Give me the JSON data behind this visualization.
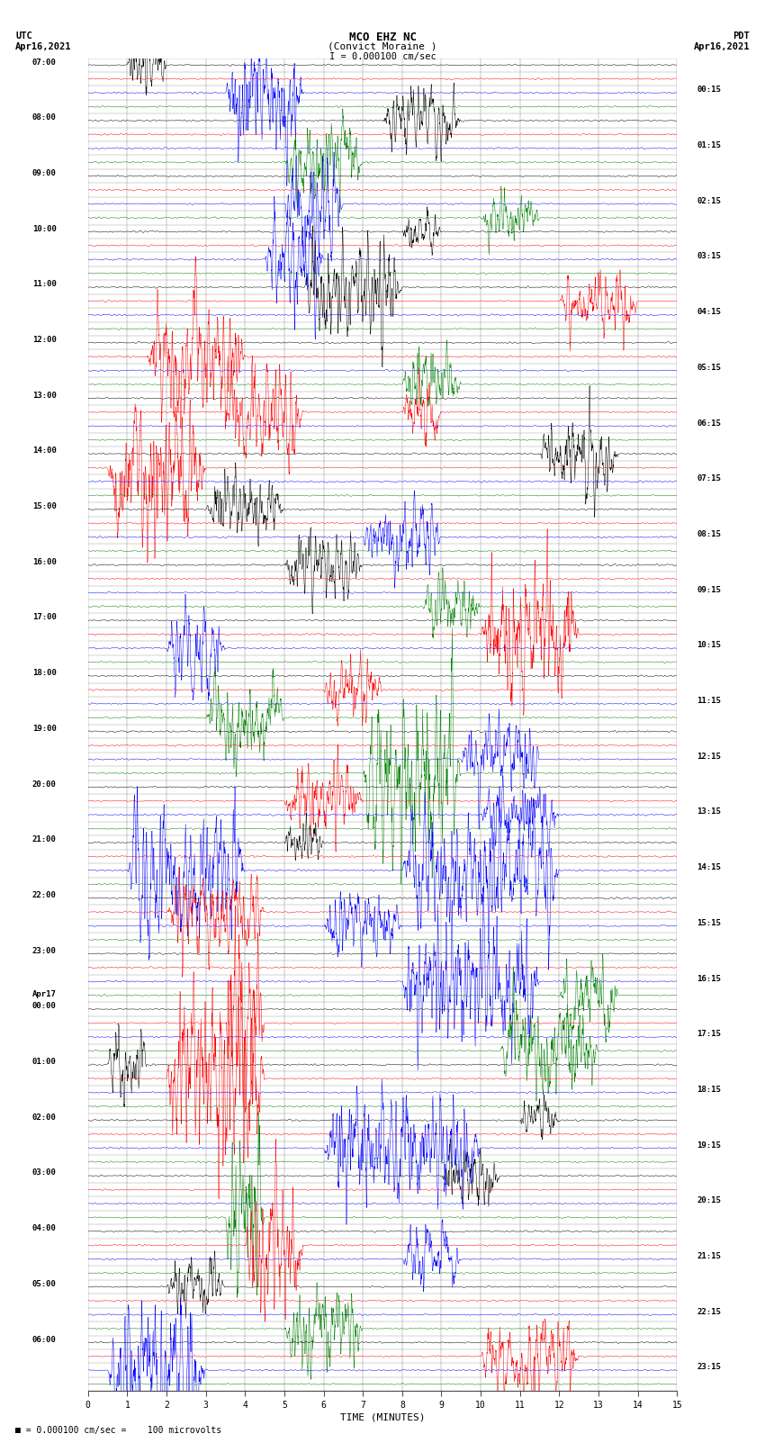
{
  "title_line1": "MCO EHZ NC",
  "title_line2": "(Convict Moraine )",
  "title_scale": "I = 0.000100 cm/sec",
  "left_header_line1": "UTC",
  "left_header_line2": "Apr16,2021",
  "right_header_line1": "PDT",
  "right_header_line2": "Apr16,2021",
  "xlabel": "TIME (MINUTES)",
  "bottom_note": "= 0.000100 cm/sec =    100 microvolts",
  "colors": [
    "black",
    "red",
    "blue",
    "green"
  ],
  "bg_color": "white",
  "line_width": 0.35,
  "fig_width": 8.5,
  "fig_height": 16.13,
  "minutes_per_row": 15,
  "num_hour_groups": 24,
  "traces_per_group": 4,
  "dpi": 100,
  "utc_labels": [
    [
      0,
      "07:00"
    ],
    [
      4,
      "08:00"
    ],
    [
      8,
      "09:00"
    ],
    [
      12,
      "10:00"
    ],
    [
      16,
      "11:00"
    ],
    [
      20,
      "12:00"
    ],
    [
      24,
      "13:00"
    ],
    [
      28,
      "14:00"
    ],
    [
      32,
      "15:00"
    ],
    [
      36,
      "16:00"
    ],
    [
      40,
      "17:00"
    ],
    [
      44,
      "18:00"
    ],
    [
      48,
      "19:00"
    ],
    [
      52,
      "20:00"
    ],
    [
      56,
      "21:00"
    ],
    [
      60,
      "22:00"
    ],
    [
      64,
      "23:00"
    ],
    [
      68,
      "Apr17"
    ],
    [
      68,
      "00:00"
    ],
    [
      72,
      "01:00"
    ],
    [
      76,
      "02:00"
    ],
    [
      80,
      "03:00"
    ],
    [
      84,
      "04:00"
    ],
    [
      88,
      "05:00"
    ],
    [
      92,
      "06:00"
    ]
  ],
  "pdt_labels": [
    [
      2,
      "00:15"
    ],
    [
      6,
      "01:15"
    ],
    [
      10,
      "02:15"
    ],
    [
      14,
      "03:15"
    ],
    [
      18,
      "04:15"
    ],
    [
      22,
      "05:15"
    ],
    [
      26,
      "06:15"
    ],
    [
      30,
      "07:15"
    ],
    [
      34,
      "08:15"
    ],
    [
      38,
      "09:15"
    ],
    [
      42,
      "10:15"
    ],
    [
      46,
      "11:15"
    ],
    [
      50,
      "12:15"
    ],
    [
      54,
      "13:15"
    ],
    [
      58,
      "14:15"
    ],
    [
      62,
      "15:15"
    ],
    [
      66,
      "16:15"
    ],
    [
      70,
      "17:15"
    ],
    [
      74,
      "18:15"
    ],
    [
      78,
      "19:15"
    ],
    [
      82,
      "20:15"
    ],
    [
      86,
      "21:15"
    ],
    [
      90,
      "22:15"
    ],
    [
      94,
      "23:15"
    ]
  ]
}
